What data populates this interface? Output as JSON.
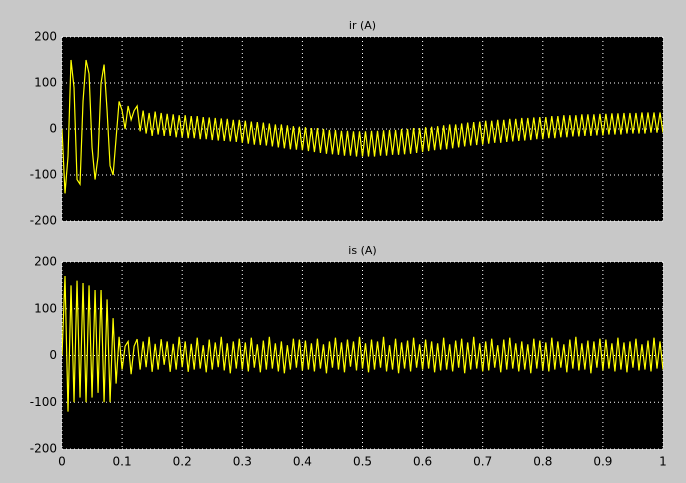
{
  "chart_data": [
    {
      "type": "line",
      "title": "ir (A)",
      "color": "#ffff00",
      "x": [
        0,
        0.005,
        0.01,
        0.015,
        0.02,
        0.025,
        0.03,
        0.035,
        0.04,
        0.045,
        0.05,
        0.055,
        0.06,
        0.065,
        0.07,
        0.075,
        0.08,
        0.085,
        0.09,
        0.095,
        0.1,
        0.105,
        0.11,
        0.115,
        0.12,
        0.125,
        0.13,
        0.135,
        0.14,
        0.145,
        0.15,
        0.155,
        0.16,
        0.165,
        0.17,
        0.175,
        0.18,
        0.185,
        0.19,
        0.195,
        0.2,
        0.205,
        0.21,
        0.215,
        0.22,
        0.225,
        0.23,
        0.235,
        0.24,
        0.245,
        0.25,
        0.255,
        0.26,
        0.265,
        0.27,
        0.275,
        0.28,
        0.285,
        0.29,
        0.295,
        0.3,
        0.305,
        0.31,
        0.315,
        0.32,
        0.325,
        0.33,
        0.335,
        0.34,
        0.345,
        0.35,
        0.355,
        0.36,
        0.365,
        0.37,
        0.375,
        0.38,
        0.385,
        0.39,
        0.395,
        0.4,
        0.405,
        0.41,
        0.415,
        0.42,
        0.425,
        0.43,
        0.435,
        0.44,
        0.445,
        0.45,
        0.455,
        0.46,
        0.465,
        0.47,
        0.475,
        0.48,
        0.485,
        0.49,
        0.495,
        0.5,
        0.505,
        0.51,
        0.515,
        0.52,
        0.525,
        0.53,
        0.535,
        0.54,
        0.545,
        0.55,
        0.555,
        0.56,
        0.565,
        0.57,
        0.575,
        0.58,
        0.585,
        0.59,
        0.595,
        0.6,
        0.605,
        0.61,
        0.615,
        0.62,
        0.625,
        0.63,
        0.635,
        0.64,
        0.645,
        0.65,
        0.655,
        0.66,
        0.665,
        0.67,
        0.675,
        0.68,
        0.685,
        0.69,
        0.695,
        0.7,
        0.705,
        0.71,
        0.715,
        0.72,
        0.725,
        0.73,
        0.735,
        0.74,
        0.745,
        0.75,
        0.755,
        0.76,
        0.765,
        0.77,
        0.775,
        0.78,
        0.785,
        0.79,
        0.795,
        0.8,
        0.805,
        0.81,
        0.815,
        0.82,
        0.825,
        0.83,
        0.835,
        0.84,
        0.845,
        0.85,
        0.855,
        0.86,
        0.865,
        0.87,
        0.875,
        0.88,
        0.885,
        0.89,
        0.895,
        0.9,
        0.905,
        0.91,
        0.915,
        0.92,
        0.925,
        0.93,
        0.935,
        0.94,
        0.945,
        0.95,
        0.955,
        0.96,
        0.965,
        0.97,
        0.975,
        0.98,
        0.985,
        0.99,
        0.995,
        1
      ],
      "values": [
        0,
        -140,
        -60,
        150,
        90,
        -110,
        -120,
        60,
        150,
        120,
        -40,
        -110,
        -60,
        100,
        140,
        40,
        -80,
        -100,
        -20,
        60,
        40,
        0,
        50,
        20,
        40,
        50,
        -5,
        40,
        -10,
        35,
        -15,
        38,
        -12,
        35,
        -15,
        33,
        -15,
        32,
        -18,
        30,
        -18,
        30,
        -20,
        28,
        -20,
        28,
        -22,
        26,
        -22,
        25,
        -24,
        24,
        -25,
        23,
        -26,
        22,
        -27,
        20,
        -28,
        20,
        -30,
        18,
        -32,
        16,
        -34,
        15,
        -35,
        14,
        -36,
        12,
        -38,
        10,
        -40,
        10,
        -42,
        8,
        -44,
        6,
        -45,
        5,
        -46,
        4,
        -48,
        2,
        -50,
        2,
        -52,
        0,
        -54,
        -2,
        -55,
        -2,
        -56,
        -4,
        -58,
        -4,
        -58,
        -5,
        -60,
        -5,
        -60,
        -5,
        -60,
        -4,
        -60,
        -4,
        -58,
        -3,
        -58,
        -2,
        -56,
        -2,
        -56,
        0,
        -55,
        0,
        -54,
        2,
        -52,
        2,
        -50,
        4,
        -48,
        5,
        -46,
        6,
        -45,
        8,
        -44,
        10,
        -42,
        10,
        -40,
        12,
        -38,
        14,
        -36,
        15,
        -35,
        16,
        -34,
        18,
        -32,
        18,
        -30,
        20,
        -30,
        20,
        -28,
        22,
        -27,
        22,
        -26,
        24,
        -25,
        24,
        -24,
        25,
        -22,
        26,
        -22,
        26,
        -20,
        28,
        -20,
        28,
        -18,
        30,
        -18,
        30,
        -16,
        30,
        -16,
        32,
        -15,
        32,
        -15,
        32,
        -14,
        33,
        -14,
        33,
        -12,
        34,
        -12,
        34,
        -12,
        35,
        -10,
        35,
        -10,
        35,
        -10,
        36,
        -10,
        36,
        -8,
        36,
        -8,
        36,
        -8
      ],
      "xlim": [
        0,
        1
      ],
      "xticks": [
        0,
        0.1,
        0.2,
        0.3,
        0.4,
        0.5,
        0.6,
        0.7,
        0.8,
        0.9,
        1
      ],
      "ylim": [
        -200,
        200
      ],
      "yticks": [
        200,
        100,
        0,
        -100,
        -200
      ],
      "grid": true
    },
    {
      "type": "line",
      "title": "is (A)",
      "color": "#ffff00",
      "x": [
        0,
        0.005,
        0.01,
        0.015,
        0.02,
        0.025,
        0.03,
        0.035,
        0.04,
        0.045,
        0.05,
        0.055,
        0.06,
        0.065,
        0.07,
        0.075,
        0.08,
        0.085,
        0.09,
        0.095,
        0.1,
        0.105,
        0.11,
        0.115,
        0.12,
        0.125,
        0.13,
        0.135,
        0.14,
        0.145,
        0.15,
        0.155,
        0.16,
        0.165,
        0.17,
        0.175,
        0.18,
        0.185,
        0.19,
        0.195,
        0.2,
        0.205,
        0.21,
        0.215,
        0.22,
        0.225,
        0.23,
        0.235,
        0.24,
        0.245,
        0.25,
        0.255,
        0.26,
        0.265,
        0.27,
        0.275,
        0.28,
        0.285,
        0.29,
        0.295,
        0.3,
        0.305,
        0.31,
        0.315,
        0.32,
        0.325,
        0.33,
        0.335,
        0.34,
        0.345,
        0.35,
        0.355,
        0.36,
        0.365,
        0.37,
        0.375,
        0.38,
        0.385,
        0.39,
        0.395,
        0.4,
        0.405,
        0.41,
        0.415,
        0.42,
        0.425,
        0.43,
        0.435,
        0.44,
        0.445,
        0.45,
        0.455,
        0.46,
        0.465,
        0.47,
        0.475,
        0.48,
        0.485,
        0.49,
        0.495,
        0.5,
        0.505,
        0.51,
        0.515,
        0.52,
        0.525,
        0.53,
        0.535,
        0.54,
        0.545,
        0.55,
        0.555,
        0.56,
        0.565,
        0.57,
        0.575,
        0.58,
        0.585,
        0.59,
        0.595,
        0.6,
        0.605,
        0.61,
        0.615,
        0.62,
        0.625,
        0.63,
        0.635,
        0.64,
        0.645,
        0.65,
        0.655,
        0.66,
        0.665,
        0.67,
        0.675,
        0.68,
        0.685,
        0.69,
        0.695,
        0.7,
        0.705,
        0.71,
        0.715,
        0.72,
        0.725,
        0.73,
        0.735,
        0.74,
        0.745,
        0.75,
        0.755,
        0.76,
        0.765,
        0.77,
        0.775,
        0.78,
        0.785,
        0.79,
        0.795,
        0.8,
        0.805,
        0.81,
        0.815,
        0.82,
        0.825,
        0.83,
        0.835,
        0.84,
        0.845,
        0.85,
        0.855,
        0.86,
        0.865,
        0.87,
        0.875,
        0.88,
        0.885,
        0.89,
        0.895,
        0.9,
        0.905,
        0.91,
        0.915,
        0.92,
        0.925,
        0.93,
        0.935,
        0.94,
        0.945,
        0.95,
        0.955,
        0.96,
        0.965,
        0.97,
        0.975,
        0.98,
        0.985,
        0.99,
        0.995,
        1
      ],
      "values": [
        0,
        170,
        -120,
        150,
        -100,
        160,
        -90,
        155,
        -100,
        150,
        -90,
        140,
        -80,
        140,
        -100,
        120,
        -100,
        80,
        -60,
        40,
        -30,
        20,
        30,
        -40,
        20,
        35,
        -30,
        30,
        -25,
        40,
        -35,
        25,
        -30,
        35,
        -20,
        30,
        -35,
        25,
        -30,
        40,
        -25,
        30,
        -35,
        25,
        -30,
        38,
        -28,
        22,
        -36,
        34,
        -30,
        28,
        -25,
        40,
        -32,
        26,
        -38,
        30,
        -28,
        36,
        -30,
        28,
        -34,
        38,
        -26,
        24,
        -36,
        32,
        -30,
        40,
        -28,
        26,
        -34,
        30,
        -38,
        22,
        -30,
        36,
        -26,
        34,
        -32,
        32,
        -30,
        26,
        -34,
        36,
        -28,
        24,
        -38,
        30,
        -26,
        38,
        -30,
        28,
        -36,
        34,
        -24,
        30,
        -32,
        40,
        -28,
        26,
        -36,
        34,
        -30,
        30,
        -26,
        40,
        -34,
        22,
        -30,
        36,
        -38,
        28,
        -28,
        32,
        -34,
        38,
        -26,
        24,
        -30,
        34,
        -28,
        30,
        -36,
        26,
        -32,
        38,
        -30,
        24,
        -34,
        32,
        -26,
        36,
        -38,
        28,
        -30,
        40,
        -28,
        26,
        -34,
        30,
        -32,
        36,
        -26,
        22,
        -36,
        34,
        -30,
        38,
        -28,
        26,
        -34,
        30,
        -30,
        24,
        -38,
        36,
        -28,
        32,
        -32,
        28,
        -34,
        38,
        -30,
        30,
        -26,
        24,
        -36,
        34,
        -28,
        40,
        -32,
        26,
        -30,
        32,
        -38,
        30,
        -26,
        36,
        -32,
        34,
        -28,
        26,
        -34,
        38,
        -30,
        28,
        -36,
        30,
        -26,
        36,
        -32,
        24,
        -30,
        32,
        -34,
        38,
        -28,
        30,
        -30
      ],
      "xlim": [
        0,
        1
      ],
      "xticks": [
        0,
        0.1,
        0.2,
        0.3,
        0.4,
        0.5,
        0.6,
        0.7,
        0.8,
        0.9,
        1
      ],
      "ylim": [
        -200,
        200
      ],
      "yticks": [
        200,
        100,
        0,
        -100,
        -200
      ],
      "grid": true
    }
  ]
}
